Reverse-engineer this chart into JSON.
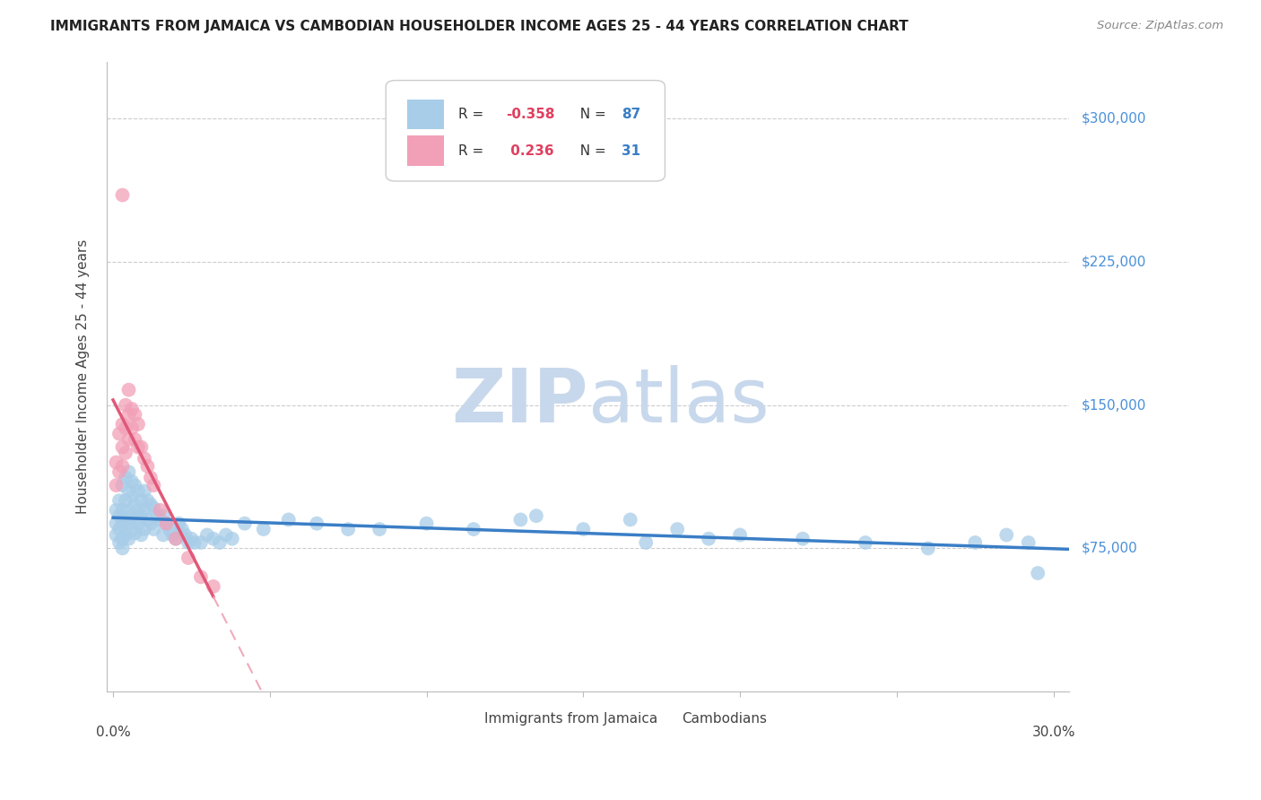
{
  "title": "IMMIGRANTS FROM JAMAICA VS CAMBODIAN HOUSEHOLDER INCOME AGES 25 - 44 YEARS CORRELATION CHART",
  "source": "Source: ZipAtlas.com",
  "ylabel": "Householder Income Ages 25 - 44 years",
  "ytick_labels": [
    "$75,000",
    "$150,000",
    "$225,000",
    "$300,000"
  ],
  "ytick_values": [
    75000,
    150000,
    225000,
    300000
  ],
  "ymin": 0,
  "ymax": 330000,
  "xmin": -0.002,
  "xmax": 0.305,
  "legend_blue_r": "-0.358",
  "legend_blue_n": "87",
  "legend_pink_r": "0.236",
  "legend_pink_n": "31",
  "blue_color": "#A8CDE8",
  "pink_color": "#F2A0B8",
  "blue_line_color": "#3A7EC6",
  "pink_line_color": "#E05878",
  "pink_dash_color": "#F0AABC",
  "background_color": "#FFFFFF",
  "grid_color": "#CCCCCC",
  "title_color": "#222222",
  "source_color": "#888888",
  "axis_label_color": "#444444",
  "ytick_color": "#4A90D9",
  "watermark_zip_color": "#C8D8EC",
  "watermark_atlas_color": "#C8D8EC",
  "jamaica_x": [
    0.001,
    0.001,
    0.001,
    0.002,
    0.002,
    0.002,
    0.002,
    0.003,
    0.003,
    0.003,
    0.003,
    0.003,
    0.004,
    0.004,
    0.004,
    0.004,
    0.005,
    0.005,
    0.005,
    0.005,
    0.005,
    0.006,
    0.006,
    0.006,
    0.006,
    0.007,
    0.007,
    0.007,
    0.007,
    0.008,
    0.008,
    0.008,
    0.009,
    0.009,
    0.009,
    0.01,
    0.01,
    0.01,
    0.011,
    0.011,
    0.012,
    0.012,
    0.013,
    0.013,
    0.014,
    0.015,
    0.016,
    0.016,
    0.017,
    0.018,
    0.019,
    0.02,
    0.021,
    0.022,
    0.023,
    0.024,
    0.025,
    0.026,
    0.028,
    0.03,
    0.032,
    0.034,
    0.036,
    0.038,
    0.042,
    0.048,
    0.056,
    0.065,
    0.075,
    0.085,
    0.1,
    0.115,
    0.13,
    0.15,
    0.165,
    0.18,
    0.2,
    0.22,
    0.24,
    0.26,
    0.275,
    0.285,
    0.292,
    0.135,
    0.17,
    0.19,
    0.295
  ],
  "jamaica_y": [
    95000,
    88000,
    82000,
    100000,
    92000,
    85000,
    78000,
    108000,
    95000,
    88000,
    80000,
    75000,
    112000,
    100000,
    90000,
    82000,
    115000,
    105000,
    95000,
    88000,
    80000,
    110000,
    102000,
    92000,
    85000,
    108000,
    98000,
    90000,
    83000,
    105000,
    95000,
    88000,
    100000,
    92000,
    82000,
    105000,
    95000,
    85000,
    100000,
    90000,
    98000,
    88000,
    96000,
    85000,
    92000,
    90000,
    92000,
    82000,
    88000,
    85000,
    82000,
    80000,
    88000,
    85000,
    82000,
    78000,
    80000,
    78000,
    78000,
    82000,
    80000,
    78000,
    82000,
    80000,
    88000,
    85000,
    90000,
    88000,
    85000,
    85000,
    88000,
    85000,
    90000,
    85000,
    90000,
    85000,
    82000,
    80000,
    78000,
    75000,
    78000,
    82000,
    78000,
    92000,
    78000,
    80000,
    62000
  ],
  "cambodian_x": [
    0.001,
    0.001,
    0.002,
    0.002,
    0.003,
    0.003,
    0.003,
    0.004,
    0.004,
    0.004,
    0.005,
    0.005,
    0.005,
    0.006,
    0.006,
    0.007,
    0.007,
    0.008,
    0.008,
    0.009,
    0.01,
    0.011,
    0.012,
    0.013,
    0.015,
    0.017,
    0.02,
    0.024,
    0.028,
    0.032,
    0.003
  ],
  "cambodian_y": [
    120000,
    108000,
    135000,
    115000,
    140000,
    128000,
    118000,
    150000,
    138000,
    125000,
    158000,
    145000,
    132000,
    148000,
    138000,
    145000,
    132000,
    140000,
    128000,
    128000,
    122000,
    118000,
    112000,
    108000,
    95000,
    88000,
    80000,
    70000,
    60000,
    55000,
    260000
  ]
}
